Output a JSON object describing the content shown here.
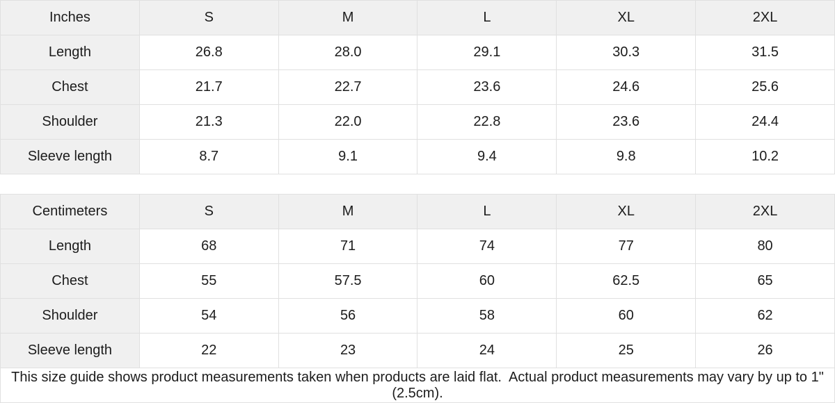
{
  "chart_data": [
    {
      "type": "table",
      "title": "Inches",
      "columns": [
        "Inches",
        "S",
        "M",
        "L",
        "XL",
        "2XL"
      ],
      "rows": [
        [
          "Length",
          "26.8",
          "28.0",
          "29.1",
          "30.3",
          "31.5"
        ],
        [
          "Chest",
          "21.7",
          "22.7",
          "23.6",
          "24.6",
          "25.6"
        ],
        [
          "Shoulder",
          "21.3",
          "22.0",
          "22.8",
          "23.6",
          "24.4"
        ],
        [
          "Sleeve length",
          "8.7",
          "9.1",
          "9.4",
          "9.8",
          "10.2"
        ]
      ]
    },
    {
      "type": "table",
      "title": "Centimeters",
      "columns": [
        "Centimeters",
        "S",
        "M",
        "L",
        "XL",
        "2XL"
      ],
      "rows": [
        [
          "Length",
          "68",
          "71",
          "74",
          "77",
          "80"
        ],
        [
          "Chest",
          "55",
          "57.5",
          "60",
          "62.5",
          "65"
        ],
        [
          "Shoulder",
          "54",
          "56",
          "58",
          "60",
          "62"
        ],
        [
          "Sleeve length",
          "22",
          "23",
          "24",
          "25",
          "26"
        ]
      ]
    }
  ],
  "note": {
    "text": "This size guide shows product measurements taken when products are laid flat.  Actual product measurements may vary by up to 1\" (2.5cm)."
  },
  "colors": {
    "header_bg": "#f0f0f0",
    "border": "#e0e0e0",
    "cell_bg": "#ffffff",
    "text": "#1c1c1c"
  }
}
